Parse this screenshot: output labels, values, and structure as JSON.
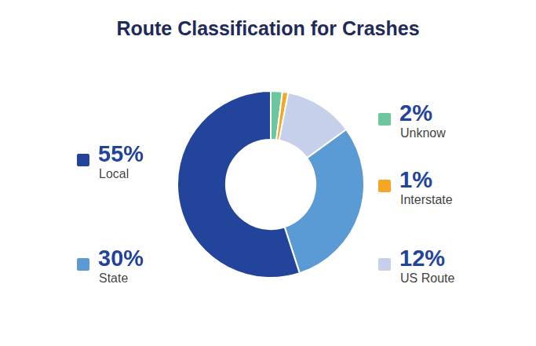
{
  "chart_data": {
    "type": "doughnut",
    "title": "Route Classification for Crashes",
    "categories": [
      "Unknow",
      "Interstate",
      "US Route",
      "State",
      "Local"
    ],
    "values": [
      2,
      1,
      12,
      30,
      55
    ],
    "value_labels": [
      "2%",
      "1%",
      "12%",
      "30%",
      "55%"
    ],
    "colors": [
      "#6cc6a0",
      "#f5a623",
      "#c7d0ea",
      "#5b9bd5",
      "#22449a"
    ]
  }
}
